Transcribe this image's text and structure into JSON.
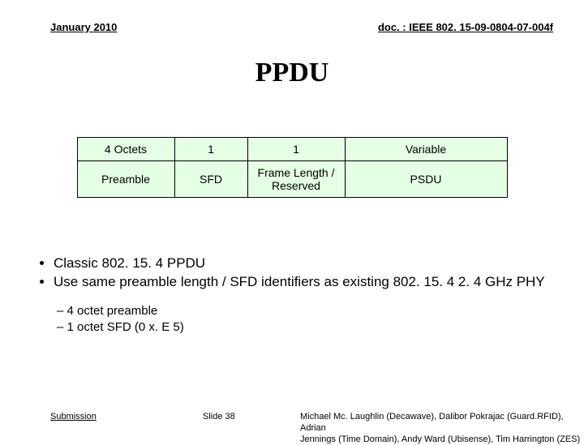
{
  "header": {
    "date": "January 2010",
    "doc": "doc. : IEEE 802. 15-09-0804-07-004f"
  },
  "title": "PPDU",
  "table": {
    "background_color": "#e5ffe5",
    "border_color": "#000000",
    "columns": [
      "c-preamble",
      "c-sfd",
      "c-frame",
      "c-psdu"
    ],
    "row1": [
      "4 Octets",
      "1",
      "1",
      "Variable"
    ],
    "row2": [
      "Preamble",
      "SFD",
      "Frame Length / Reserved",
      "PSDU"
    ]
  },
  "bullets": {
    "b1": "Classic 802. 15. 4 PPDU",
    "b2": "Use same preamble length / SFD identifiers as existing 802. 15. 4 2. 4 GHz PHY",
    "s1": "4 octet preamble",
    "s2": "1 octet SFD (0 x. E 5)"
  },
  "footer": {
    "left": "Submission",
    "center": "Slide 38",
    "right1": "Michael Mc. Laughlin (Decawave), Dalibor Pokrajac (Guard.RFID), Adrian",
    "right2": "Jennings (Time Domain), Andy Ward (Ubisense), Tim Harrington (ZES)"
  }
}
